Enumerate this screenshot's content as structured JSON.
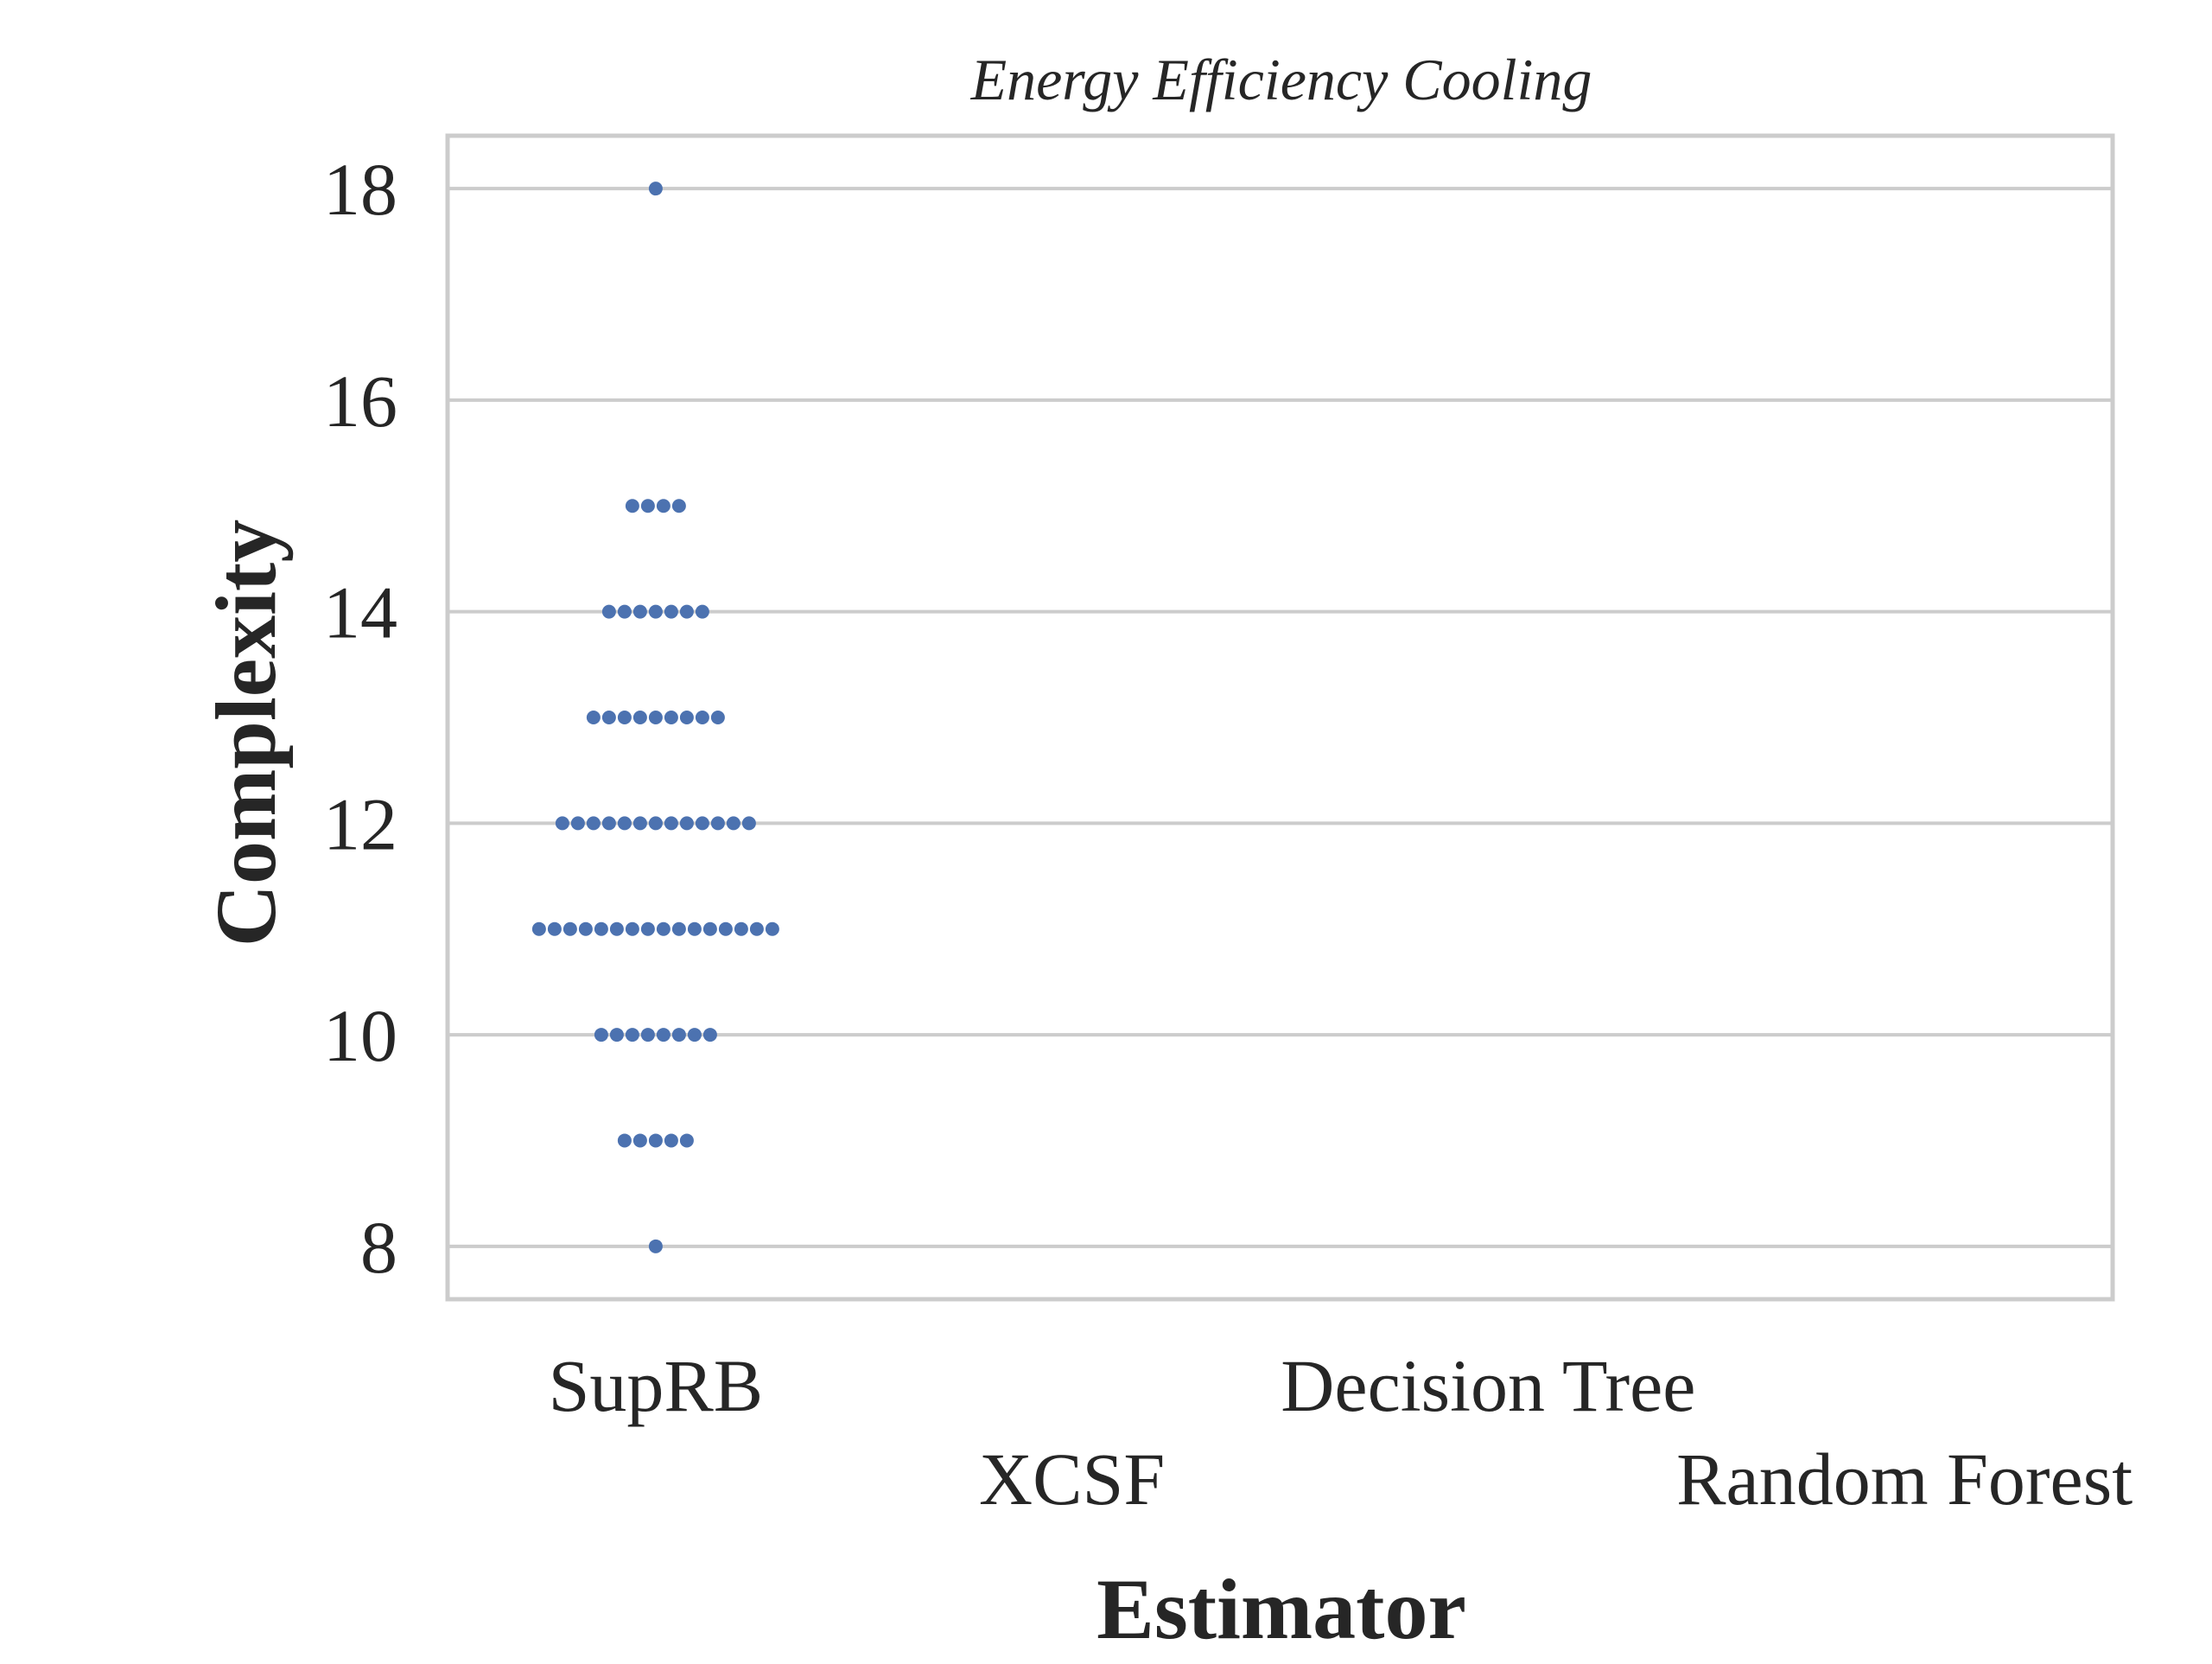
{
  "chart_data": {
    "type": "scatter",
    "subtype": "swarm",
    "title": "Energy Efficiency Cooling",
    "xlabel": "Estimator",
    "ylabel": "Complexity",
    "categories": [
      "SupRB",
      "XCSF",
      "Decision Tree",
      "Random Forest"
    ],
    "ylim": [
      7.5,
      18.5
    ],
    "yticks": [
      8,
      10,
      12,
      14,
      16,
      18
    ],
    "grid": true,
    "series": [
      {
        "category": "SupRB",
        "color": "#4c72b0",
        "counts": [
          {
            "y": 18,
            "n": 1
          },
          {
            "y": 15,
            "n": 4
          },
          {
            "y": 14,
            "n": 7
          },
          {
            "y": 13,
            "n": 9
          },
          {
            "y": 12,
            "n": 13
          },
          {
            "y": 11,
            "n": 16
          },
          {
            "y": 10,
            "n": 8
          },
          {
            "y": 9,
            "n": 5
          },
          {
            "y": 8,
            "n": 1
          }
        ]
      }
    ],
    "colors": {
      "points": "#4c72b0",
      "grid": "#cccccc",
      "spine": "#cccccc",
      "text": "#262626"
    }
  }
}
